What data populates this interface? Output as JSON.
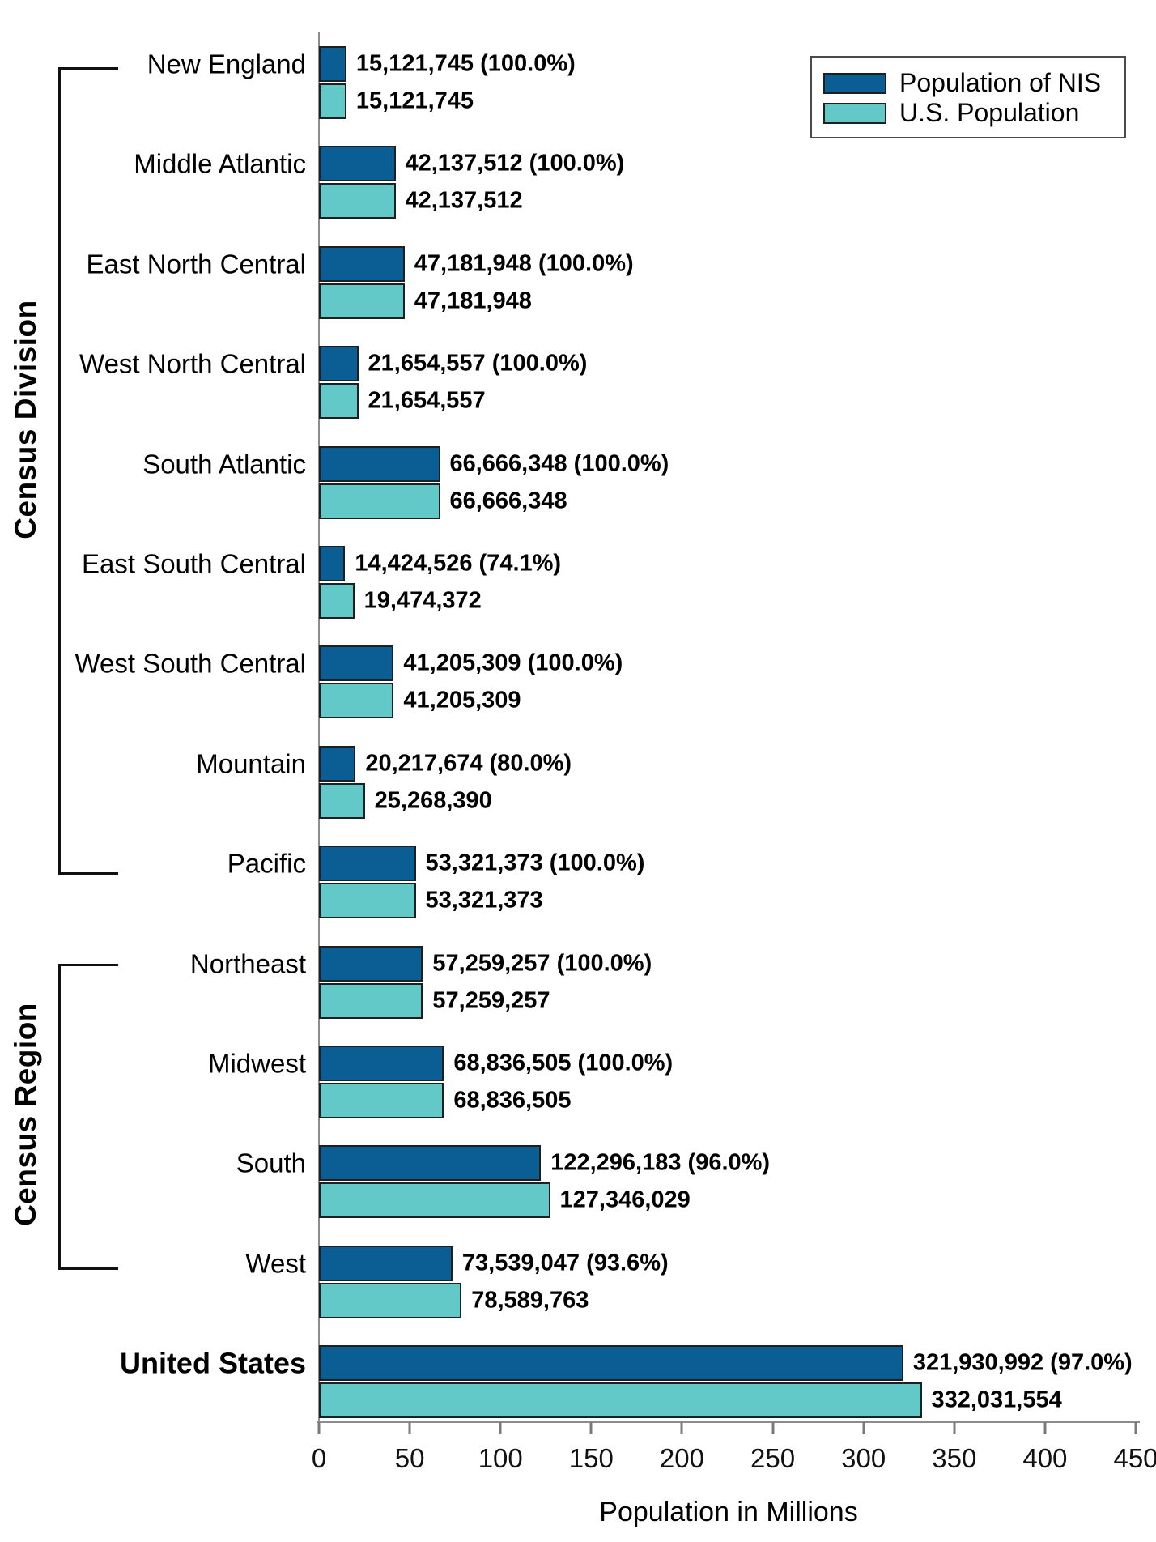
{
  "chart_data": {
    "type": "bar",
    "orientation": "horizontal",
    "xlabel": "Population in Millions",
    "xlim": [
      0,
      450
    ],
    "x_ticks": [
      0,
      50,
      100,
      150,
      200,
      250,
      300,
      350,
      400,
      450
    ],
    "grid": false,
    "legend_position": "top-right",
    "categories": [
      "New England",
      "Middle Atlantic",
      "East North Central",
      "West North Central",
      "South Atlantic",
      "East South Central",
      "West South Central",
      "Mountain",
      "Pacific",
      "Northeast",
      "Midwest",
      "South",
      "West",
      "United States"
    ],
    "emphasized_category": "United States",
    "series": [
      {
        "name": "Population of NIS",
        "color": "#0A5E94",
        "values": [
          15121745,
          42137512,
          47181948,
          21654557,
          66666348,
          14424526,
          41205309,
          20217674,
          53321373,
          57259257,
          68836505,
          122296183,
          73539047,
          321930992
        ],
        "labels": [
          "15,121,745 (100.0%)",
          "42,137,512 (100.0%)",
          "47,181,948 (100.0%)",
          "21,654,557 (100.0%)",
          "66,666,348 (100.0%)",
          "14,424,526 (74.1%)",
          "41,205,309 (100.0%)",
          "20,217,674 (80.0%)",
          "53,321,373 (100.0%)",
          "57,259,257 (100.0%)",
          "68,836,505 (100.0%)",
          "122,296,183 (96.0%)",
          "73,539,047 (93.6%)",
          "321,930,992 (97.0%)"
        ]
      },
      {
        "name": "U.S. Population",
        "color": "#63C9C8",
        "values": [
          15121745,
          42137512,
          47181948,
          21654557,
          66666348,
          19474372,
          41205309,
          25268390,
          53321373,
          57259257,
          68836505,
          127346029,
          78589763,
          332031554
        ],
        "labels": [
          "15,121,745",
          "42,137,512",
          "47,181,948",
          "21,654,557",
          "66,666,348",
          "19,474,372",
          "41,205,309",
          "25,268,390",
          "53,321,373",
          "57,259,257",
          "68,836,505",
          "127,346,029",
          "78,589,763",
          "332,031,554"
        ]
      }
    ],
    "axis_groups": [
      {
        "label": "Census Division",
        "from": "New England",
        "to": "Pacific"
      },
      {
        "label": "Census Region",
        "from": "Northeast",
        "to": "West"
      }
    ]
  },
  "legend": {
    "items": [
      {
        "label": "Population of NIS",
        "color": "#0A5E94"
      },
      {
        "label": "U.S. Population",
        "color": "#63C9C8"
      }
    ]
  },
  "colors": {
    "nis_bar": "#0A5E94",
    "us_bar": "#63C9C8",
    "bar_border": "#1f1f1f",
    "axis_line": "#8c8c8c",
    "tick": "#7a7a7a",
    "bracket": "#111111"
  }
}
